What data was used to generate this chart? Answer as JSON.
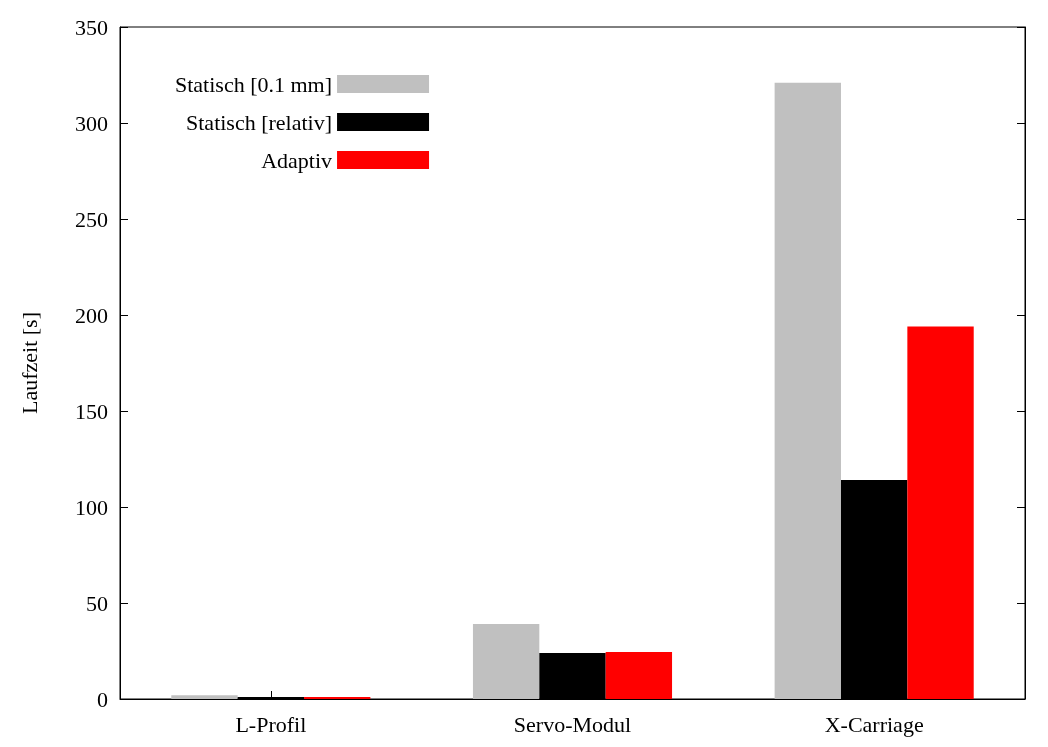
{
  "chart_data": {
    "type": "bar",
    "ylabel": "Laufzeit [s]",
    "categories": [
      "L-Profil",
      "Servo-Modul",
      "X-Carriage"
    ],
    "series": [
      {
        "name": "Statisch [0.1 mm]",
        "color": "#c0c0c0",
        "values": [
          2,
          39,
          321
        ]
      },
      {
        "name": "Statisch [relativ]",
        "color": "#000000",
        "values": [
          1,
          24,
          114
        ]
      },
      {
        "name": "Adaptiv",
        "color": "#ff0000",
        "values": [
          1,
          24.5,
          194
        ]
      }
    ],
    "ylim": [
      0,
      350
    ],
    "yticks": [
      0,
      50,
      100,
      150,
      200,
      250,
      300,
      350
    ],
    "grid": false,
    "legend": "top left"
  }
}
